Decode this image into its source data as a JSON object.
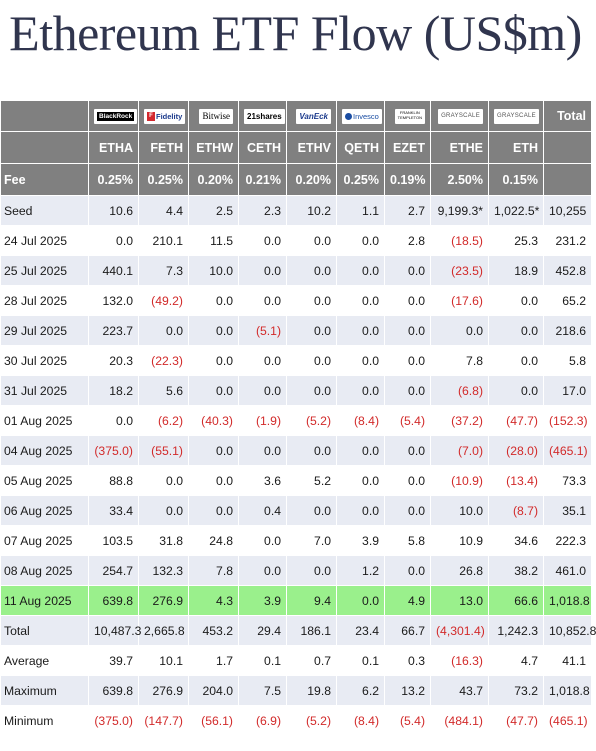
{
  "title": "Ethereum ETF Flow (US$m)",
  "logos": {
    "blackrock": "BlackRock",
    "fidelity": "Fidelity",
    "fidelity_mark": "F",
    "bitwise": "Bitwise",
    "shares": "21shares",
    "vaneck": "VanEck",
    "invesco": "Invesco",
    "franklin_1": "FRANKLIN",
    "franklin_2": "TEMPLETON",
    "grayscale_1": "GRAYSCALE",
    "grayscale_2": "GRAYSCALE"
  },
  "header": {
    "total": "Total",
    "tickers": [
      "ETHA",
      "FETH",
      "ETHW",
      "CETH",
      "ETHV",
      "QETH",
      "EZET",
      "ETHE",
      "ETH"
    ],
    "fee_label": "Fee",
    "fees": [
      "0.25%",
      "0.25%",
      "0.20%",
      "0.21%",
      "0.20%",
      "0.25%",
      "0.19%",
      "2.50%",
      "0.15%"
    ]
  },
  "rows": [
    {
      "label": "Seed",
      "cells": [
        "10.6",
        "4.4",
        "2.5",
        "2.3",
        "10.2",
        "1.1",
        "2.7",
        "9,199.3*",
        "1,022.5*",
        "10,255"
      ]
    },
    {
      "label": "24 Jul 2025",
      "cells": [
        "0.0",
        "210.1",
        "11.5",
        "0.0",
        "0.0",
        "0.0",
        "2.8",
        "(18.5)",
        "25.3",
        "231.2"
      ]
    },
    {
      "label": "25 Jul 2025",
      "cells": [
        "440.1",
        "7.3",
        "10.0",
        "0.0",
        "0.0",
        "0.0",
        "0.0",
        "(23.5)",
        "18.9",
        "452.8"
      ]
    },
    {
      "label": "28 Jul 2025",
      "cells": [
        "132.0",
        "(49.2)",
        "0.0",
        "0.0",
        "0.0",
        "0.0",
        "0.0",
        "(17.6)",
        "0.0",
        "65.2"
      ]
    },
    {
      "label": "29 Jul 2025",
      "cells": [
        "223.7",
        "0.0",
        "0.0",
        "(5.1)",
        "0.0",
        "0.0",
        "0.0",
        "0.0",
        "0.0",
        "218.6"
      ]
    },
    {
      "label": "30 Jul 2025",
      "cells": [
        "20.3",
        "(22.3)",
        "0.0",
        "0.0",
        "0.0",
        "0.0",
        "0.0",
        "7.8",
        "0.0",
        "5.8"
      ]
    },
    {
      "label": "31 Jul 2025",
      "cells": [
        "18.2",
        "5.6",
        "0.0",
        "0.0",
        "0.0",
        "0.0",
        "0.0",
        "(6.8)",
        "0.0",
        "17.0"
      ]
    },
    {
      "label": "01 Aug 2025",
      "cells": [
        "0.0",
        "(6.2)",
        "(40.3)",
        "(1.9)",
        "(5.2)",
        "(8.4)",
        "(5.4)",
        "(37.2)",
        "(47.7)",
        "(152.3)"
      ]
    },
    {
      "label": "04 Aug 2025",
      "cells": [
        "(375.0)",
        "(55.1)",
        "0.0",
        "0.0",
        "0.0",
        "0.0",
        "0.0",
        "(7.0)",
        "(28.0)",
        "(465.1)"
      ]
    },
    {
      "label": "05 Aug 2025",
      "cells": [
        "88.8",
        "0.0",
        "0.0",
        "3.6",
        "5.2",
        "0.0",
        "0.0",
        "(10.9)",
        "(13.4)",
        "73.3"
      ]
    },
    {
      "label": "06 Aug 2025",
      "cells": [
        "33.4",
        "0.0",
        "0.0",
        "0.4",
        "0.0",
        "0.0",
        "0.0",
        "10.0",
        "(8.7)",
        "35.1"
      ]
    },
    {
      "label": "07 Aug 2025",
      "cells": [
        "103.5",
        "31.8",
        "24.8",
        "0.0",
        "7.0",
        "3.9",
        "5.8",
        "10.9",
        "34.6",
        "222.3"
      ]
    },
    {
      "label": "08 Aug 2025",
      "cells": [
        "254.7",
        "132.3",
        "7.8",
        "0.0",
        "0.0",
        "1.2",
        "0.0",
        "26.8",
        "38.2",
        "461.0"
      ]
    },
    {
      "label": "11 Aug 2025",
      "cells": [
        "639.8",
        "276.9",
        "4.3",
        "3.9",
        "9.4",
        "0.0",
        "4.9",
        "13.0",
        "66.6",
        "1,018.8"
      ],
      "highlight": true
    },
    {
      "label": "Total",
      "cells": [
        "10,487.3",
        "2,665.8",
        "453.2",
        "29.4",
        "186.1",
        "23.4",
        "66.7",
        "(4,301.4)",
        "1,242.3",
        "10,852.8"
      ]
    },
    {
      "label": "Average",
      "cells": [
        "39.7",
        "10.1",
        "1.7",
        "0.1",
        "0.7",
        "0.1",
        "0.3",
        "(16.3)",
        "4.7",
        "41.1"
      ]
    },
    {
      "label": "Maximum",
      "cells": [
        "639.8",
        "276.9",
        "204.0",
        "7.5",
        "19.8",
        "6.2",
        "13.2",
        "43.7",
        "73.2",
        "1,018.8"
      ]
    },
    {
      "label": "Minimum",
      "cells": [
        "(375.0)",
        "(147.7)",
        "(56.1)",
        "(6.9)",
        "(5.2)",
        "(8.4)",
        "(5.4)",
        "(484.1)",
        "(47.7)",
        "(465.1)"
      ]
    }
  ],
  "colors": {
    "header_bg": "#808080",
    "row_odd": "#e8ebf3",
    "row_even": "#ffffff",
    "highlight": "#9af08c",
    "negative": "#d22a2a",
    "title": "#30354e"
  }
}
